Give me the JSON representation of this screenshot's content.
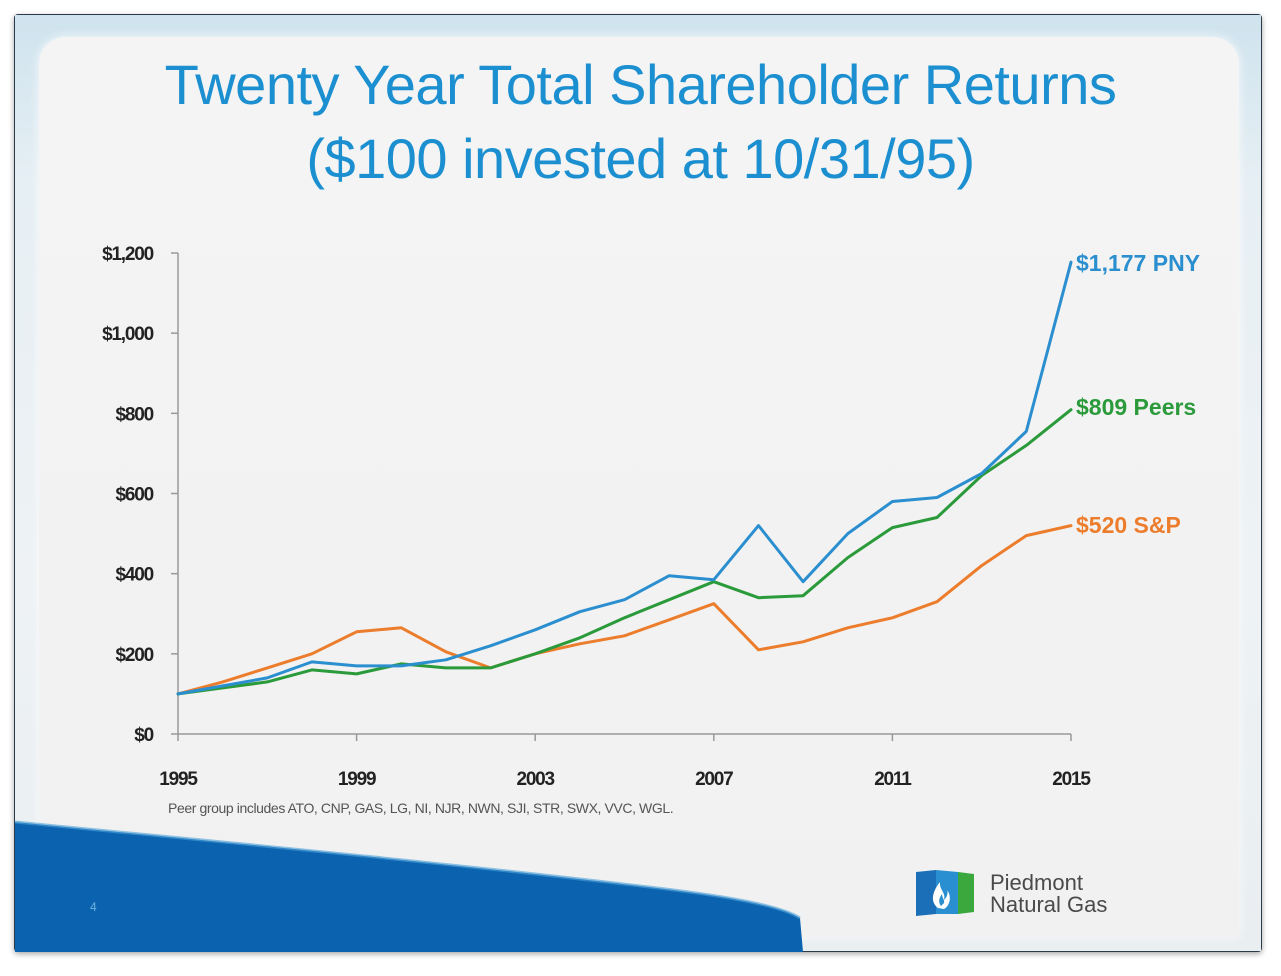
{
  "slide": {
    "title_line1": "Twenty Year Total Shareholder Returns",
    "title_line2": "($100 invested at 10/31/95)",
    "footnote": "Peer group includes ATO, CNP, GAS, LG, NI, NJR, NWN, SJI, STR, SWX, VVC, WGL.",
    "page_number": "4",
    "logo": {
      "line1": "Piedmont",
      "line2": "Natural Gas"
    }
  },
  "colors": {
    "title": "#1b8fd0",
    "pny": "#2b8fcf",
    "peers": "#2a9a3a",
    "sp": "#ec7d2c",
    "swoosh": "#0b63b0"
  },
  "chart_data": {
    "type": "line",
    "x": [
      1995,
      1996,
      1997,
      1998,
      1999,
      2000,
      2001,
      2002,
      2003,
      2004,
      2005,
      2006,
      2007,
      2008,
      2009,
      2010,
      2011,
      2012,
      2013,
      2014,
      2015
    ],
    "xticks": [
      1995,
      1999,
      2003,
      2007,
      2011,
      2015
    ],
    "xtick_labels": [
      "1995",
      "1999",
      "2003",
      "2007",
      "2011",
      "2015"
    ],
    "yticks": [
      0,
      200,
      400,
      600,
      800,
      1000,
      1200
    ],
    "ytick_labels": [
      "$0",
      "$200",
      "$400",
      "$600",
      "$800",
      "$1,000",
      "$1,200"
    ],
    "ylim": [
      0,
      1200
    ],
    "xlim": [
      1995,
      2015
    ],
    "grid": false,
    "series": [
      {
        "id": "pny",
        "color": "#2b8fcf",
        "end_label": "$1,177 PNY",
        "values": [
          100,
          120,
          140,
          180,
          170,
          170,
          185,
          220,
          260,
          305,
          335,
          395,
          385,
          520,
          380,
          500,
          580,
          590,
          650,
          755,
          1177
        ]
      },
      {
        "id": "peers",
        "color": "#2a9a3a",
        "end_label": "$809 Peers",
        "values": [
          100,
          115,
          130,
          160,
          150,
          175,
          165,
          165,
          200,
          240,
          290,
          335,
          380,
          340,
          345,
          440,
          515,
          540,
          645,
          720,
          809
        ]
      },
      {
        "id": "sp",
        "color": "#ec7d2c",
        "end_label": "$520 S&P",
        "values": [
          100,
          130,
          165,
          200,
          255,
          265,
          205,
          165,
          200,
          225,
          245,
          285,
          325,
          210,
          230,
          265,
          290,
          330,
          420,
          495,
          520
        ]
      }
    ]
  }
}
